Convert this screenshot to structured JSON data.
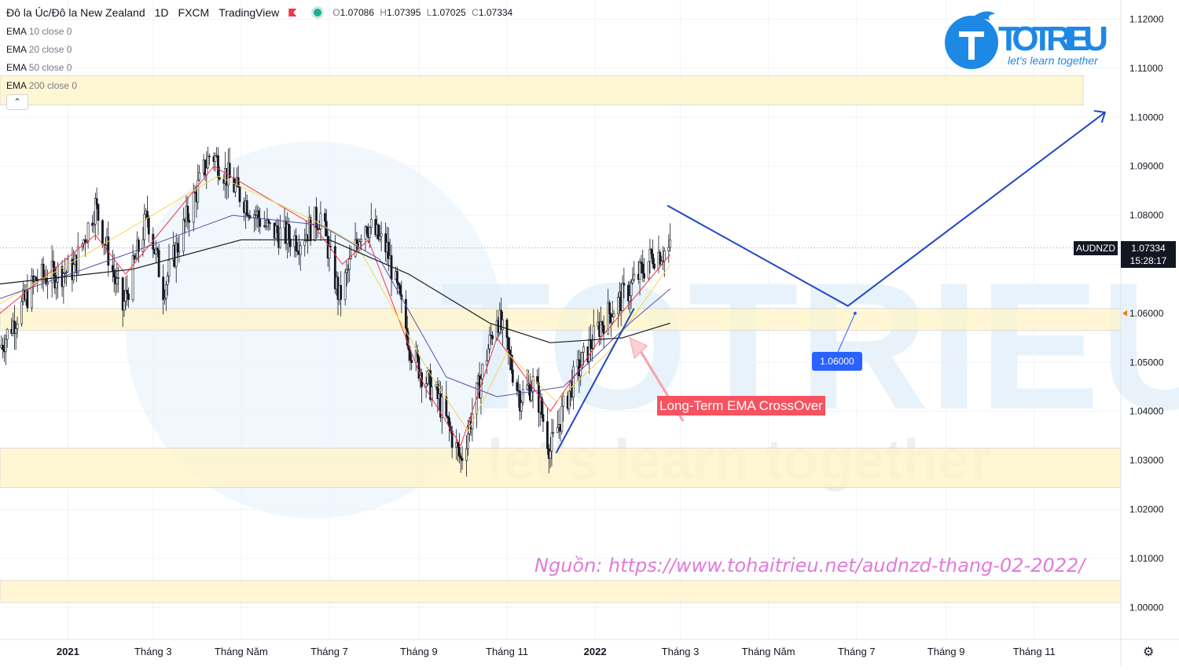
{
  "header": {
    "symbol_title": "Đô la Úc/Đô la New Zealand",
    "interval": "1D",
    "exchange": "FXCM",
    "platform": "TradingView",
    "ohlc": {
      "o_label": "O",
      "o": "1.07086",
      "h_label": "H",
      "h": "1.07395",
      "l_label": "L",
      "l": "1.07025",
      "c_label": "C",
      "c": "1.07334"
    },
    "indicators": [
      {
        "name": "EMA",
        "params": "10 close 0",
        "color": "#f23645"
      },
      {
        "name": "EMA",
        "params": "20 close 0",
        "color": "#f7d44c"
      },
      {
        "name": "EMA",
        "params": "50 close 0",
        "color": "#5b4fa8"
      },
      {
        "name": "EMA",
        "params": "200 close 0",
        "color": "#1a1a1a"
      }
    ],
    "collapse_icon": "chevron-up-icon"
  },
  "logo": {
    "brand": "TOTRIEU",
    "tagline": "let's learn together",
    "color": "#1e88e5"
  },
  "watermark": {
    "brand": "TOTRIEU",
    "tagline": "let's learn together"
  },
  "price_tag": {
    "symbol": "AUDNZD",
    "price": "1.07334",
    "countdown": "15:28:17"
  },
  "annotations": {
    "level_label": "1.06000",
    "crossover_label": "Long-Term EMA CrossOver",
    "source_text": "Nguồn: https://www.tohaitrieu.net/audnzd-thang-02-2022/"
  },
  "settings_icon": "gear-icon",
  "chart_data": {
    "type": "candlestick",
    "title": "Đô la Úc/Đô la New Zealand",
    "ylim": [
      0.994,
      1.1285
    ],
    "yticks": [
      "1.12000",
      "1.11000",
      "1.10000",
      "1.09000",
      "1.08000",
      "1.07000",
      "1.06000",
      "1.05000",
      "1.04000",
      "1.03000",
      "1.02000",
      "1.01000",
      "1.00000"
    ],
    "xticks": [
      "2021",
      "Tháng 3",
      "Tháng Năm",
      "Tháng 7",
      "Tháng 9",
      "Tháng 11",
      "2022",
      "Tháng 3",
      "Tháng Năm",
      "Tháng 7",
      "Tháng 9",
      "Tháng 11"
    ],
    "x_range": [
      "2020-11-15",
      "2022-12-31"
    ],
    "xtick_dates": [
      "2021-01-01",
      "2021-03-01",
      "2021-05-01",
      "2021-07-01",
      "2021-09-01",
      "2021-11-01",
      "2022-01-01",
      "2022-03-01",
      "2022-05-01",
      "2022-07-01",
      "2022-09-01",
      "2022-11-01"
    ],
    "price_path": [
      [
        "2020-11-15",
        1.053
      ],
      [
        "2020-12-10",
        1.067
      ],
      [
        "2021-01-05",
        1.069
      ],
      [
        "2021-01-20",
        1.082
      ],
      [
        "2021-02-08",
        1.061
      ],
      [
        "2021-02-25",
        1.08
      ],
      [
        "2021-03-08",
        1.065
      ],
      [
        "2021-03-25",
        1.08
      ],
      [
        "2021-04-10",
        1.093
      ],
      [
        "2021-04-28",
        1.085
      ],
      [
        "2021-05-20",
        1.077
      ],
      [
        "2021-06-10",
        1.075
      ],
      [
        "2021-06-25",
        1.08
      ],
      [
        "2021-07-08",
        1.063
      ],
      [
        "2021-07-25",
        1.079
      ],
      [
        "2021-08-10",
        1.073
      ],
      [
        "2021-08-28",
        1.051
      ],
      [
        "2021-09-15",
        1.042
      ],
      [
        "2021-09-30",
        1.03
      ],
      [
        "2021-10-25",
        1.06
      ],
      [
        "2021-11-10",
        1.043
      ],
      [
        "2021-11-20",
        1.046
      ],
      [
        "2021-12-01",
        1.032
      ],
      [
        "2021-12-15",
        1.045
      ],
      [
        "2022-01-05",
        1.058
      ],
      [
        "2022-01-25",
        1.065
      ],
      [
        "2022-02-10",
        1.072
      ],
      [
        "2022-02-22",
        1.073
      ]
    ],
    "ema_10": [
      [
        "2020-11-15",
        1.06
      ],
      [
        "2021-01-20",
        1.076
      ],
      [
        "2021-02-10",
        1.068
      ],
      [
        "2021-04-12",
        1.09
      ],
      [
        "2021-06-20",
        1.078
      ],
      [
        "2021-07-10",
        1.07
      ],
      [
        "2021-07-28",
        1.075
      ],
      [
        "2021-09-05",
        1.045
      ],
      [
        "2021-09-30",
        1.033
      ],
      [
        "2021-10-25",
        1.055
      ],
      [
        "2021-12-01",
        1.04
      ],
      [
        "2022-01-05",
        1.055
      ],
      [
        "2022-02-22",
        1.072
      ]
    ],
    "ema_20": [
      [
        "2020-11-15",
        1.062
      ],
      [
        "2021-01-25",
        1.074
      ],
      [
        "2021-04-15",
        1.088
      ],
      [
        "2021-06-20",
        1.079
      ],
      [
        "2021-07-20",
        1.074
      ],
      [
        "2021-09-10",
        1.047
      ],
      [
        "2021-10-05",
        1.036
      ],
      [
        "2021-11-01",
        1.052
      ],
      [
        "2021-12-05",
        1.042
      ],
      [
        "2022-01-10",
        1.052
      ],
      [
        "2022-02-22",
        1.07
      ]
    ],
    "ema_50": [
      [
        "2020-11-15",
        1.063
      ],
      [
        "2021-02-10",
        1.072
      ],
      [
        "2021-04-25",
        1.08
      ],
      [
        "2021-06-25",
        1.078
      ],
      [
        "2021-08-05",
        1.071
      ],
      [
        "2021-09-20",
        1.047
      ],
      [
        "2021-10-25",
        1.043
      ],
      [
        "2021-12-10",
        1.045
      ],
      [
        "2022-01-25",
        1.058
      ],
      [
        "2022-02-22",
        1.065
      ]
    ],
    "ema_200": [
      [
        "2020-11-15",
        1.066
      ],
      [
        "2021-02-15",
        1.069
      ],
      [
        "2021-05-01",
        1.075
      ],
      [
        "2021-07-01",
        1.075
      ],
      [
        "2021-08-25",
        1.068
      ],
      [
        "2021-10-20",
        1.058
      ],
      [
        "2021-12-01",
        1.054
      ],
      [
        "2022-01-20",
        1.055
      ],
      [
        "2022-02-22",
        1.058
      ]
    ],
    "zones": [
      {
        "from": 1.1025,
        "to": 1.1085,
        "end_date": "2022-12-05"
      },
      {
        "from": 1.0565,
        "to": 1.061
      },
      {
        "from": 1.0245,
        "to": 1.0325
      },
      {
        "from": 1.001,
        "to": 1.0055
      }
    ],
    "forecast_path": [
      [
        "2022-02-20",
        1.082
      ],
      [
        "2022-06-25",
        1.0615
      ],
      [
        "2022-12-20",
        1.101
      ]
    ],
    "trend_line": [
      [
        "2021-12-05",
        1.0315
      ],
      [
        "2022-01-28",
        1.061
      ]
    ],
    "crossover_arrow": [
      [
        "2022-03-03",
        1.038
      ],
      [
        "2022-01-25",
        1.055
      ]
    ],
    "level_marker": {
      "date": "2022-06-30",
      "value": 1.06
    }
  }
}
